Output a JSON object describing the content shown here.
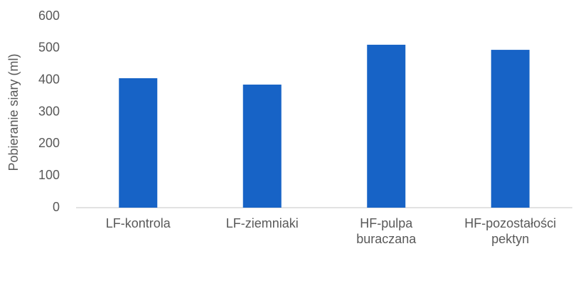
{
  "chart_data": {
    "type": "bar",
    "ylabel": "Pobieranie siary (ml)",
    "categories": [
      "LF-kontrola",
      "LF-ziemniaki",
      "HF-pulpa\nburaczana",
      "HF-pozostałości\npektyn"
    ],
    "values": [
      406,
      386,
      511,
      495
    ],
    "color": "#1763c6",
    "ylim": [
      0,
      600
    ],
    "yticks": [
      0,
      100,
      200,
      300,
      400,
      500,
      600
    ],
    "grid": false
  }
}
